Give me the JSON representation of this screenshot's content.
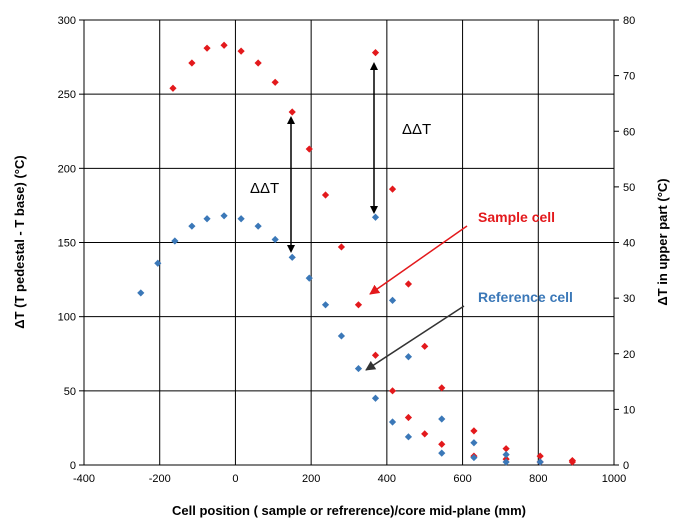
{
  "chart_data": {
    "type": "scatter",
    "xlabel": "Cell position ( sample or refrerence)/core mid-plane (mm)",
    "ylabel_left": "ΔT (T pedestal - T base) (°C)",
    "ylabel_right": "ΔT in upper part (°C)",
    "xlim": [
      -400,
      1000
    ],
    "ylim_left": [
      0,
      300
    ],
    "ylim_right": [
      0,
      80
    ],
    "x_ticks": [
      "-400",
      "-200",
      "0",
      "200",
      "400",
      "600",
      "800",
      "1000"
    ],
    "y_left_ticks": [
      "0",
      "50",
      "100",
      "150",
      "200",
      "250",
      "300"
    ],
    "y_right_ticks": [
      "0",
      "10",
      "20",
      "30",
      "40",
      "50",
      "60",
      "70",
      "80"
    ],
    "grid": true,
    "series": [
      {
        "name": "Sample cell",
        "color": "#e3191c",
        "points": [
          [
            -165,
            254
          ],
          [
            -115,
            271
          ],
          [
            -75,
            281
          ],
          [
            -30,
            283
          ],
          [
            15,
            279
          ],
          [
            60,
            271
          ],
          [
            105,
            258
          ],
          [
            150,
            238
          ],
          [
            195,
            213
          ],
          [
            238,
            182
          ],
          [
            280,
            147
          ],
          [
            325,
            108
          ],
          [
            370,
            278
          ],
          [
            415,
            186
          ],
          [
            457,
            122
          ],
          [
            500,
            80
          ],
          [
            545,
            52
          ],
          [
            370,
            74
          ],
          [
            415,
            50
          ],
          [
            457,
            32
          ],
          [
            500,
            21
          ],
          [
            545,
            14
          ],
          [
            630,
            23
          ],
          [
            630,
            6
          ],
          [
            715,
            11
          ],
          [
            715,
            4
          ],
          [
            805,
            6
          ],
          [
            805,
            2
          ],
          [
            890,
            3
          ],
          [
            890,
            2
          ]
        ]
      },
      {
        "name": "Reference cell",
        "color": "#3b78b8",
        "points": [
          [
            -250,
            116
          ],
          [
            -205,
            136
          ],
          [
            -160,
            151
          ],
          [
            -115,
            161
          ],
          [
            -75,
            166
          ],
          [
            -30,
            168
          ],
          [
            15,
            166
          ],
          [
            60,
            161
          ],
          [
            105,
            152
          ],
          [
            150,
            140
          ],
          [
            195,
            126
          ],
          [
            238,
            108
          ],
          [
            280,
            87
          ],
          [
            325,
            65
          ],
          [
            370,
            167
          ],
          [
            415,
            111
          ],
          [
            457,
            73
          ],
          [
            370,
            45
          ],
          [
            415,
            29
          ],
          [
            457,
            19
          ],
          [
            545,
            31
          ],
          [
            545,
            8
          ],
          [
            630,
            15
          ],
          [
            630,
            5
          ],
          [
            715,
            7
          ],
          [
            715,
            2
          ],
          [
            805,
            2
          ]
        ]
      }
    ],
    "annotations": [
      {
        "text": "ΔΔT",
        "color": "#000000"
      },
      {
        "text": "ΔΔT",
        "color": "#000000"
      },
      {
        "text": "Sample cell",
        "color": "#e3191c"
      },
      {
        "text": "Reference cell",
        "color": "#3b78b8"
      }
    ]
  }
}
